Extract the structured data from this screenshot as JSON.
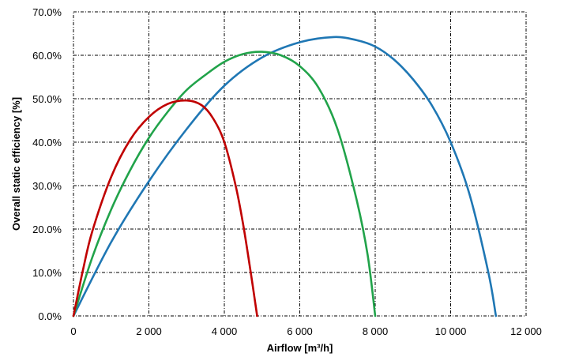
{
  "chart_data": {
    "type": "line",
    "title": "",
    "xlabel": "Airflow [m³/h]",
    "ylabel": "Overall static efficiency [%]",
    "xlim": [
      0,
      12000
    ],
    "ylim": [
      0,
      70
    ],
    "x_ticks": [
      0,
      2000,
      4000,
      6000,
      8000,
      10000,
      12000
    ],
    "x_tick_labels": [
      "0",
      "2 000",
      "4 000",
      "6 000",
      "8 000",
      "10 000",
      "12 000"
    ],
    "y_ticks": [
      0,
      10,
      20,
      30,
      40,
      50,
      60,
      70
    ],
    "y_tick_labels": [
      "0.0%",
      "10.0%",
      "20.0%",
      "30.0%",
      "40.0%",
      "50.0%",
      "60.0%",
      "70.0%"
    ],
    "grid": true,
    "legend": "none",
    "series": [
      {
        "color": "#1f77b4",
        "x": [
          0,
          1000,
          2000,
          3000,
          4000,
          5000,
          6000,
          6900,
          7500,
          8000,
          8500,
          9000,
          9500,
          10000,
          10500,
          11000,
          11200
        ],
        "y": [
          0,
          17,
          31,
          43,
          53,
          59.5,
          63,
          64.2,
          63.5,
          62,
          59,
          54.5,
          48.5,
          40,
          28,
          10,
          0
        ]
      },
      {
        "color": "#21a34a",
        "x": [
          0,
          500,
          1000,
          1500,
          2000,
          2500,
          3000,
          3500,
          4000,
          4500,
          5000,
          5500,
          6000,
          6500,
          7000,
          7500,
          7800,
          8000
        ],
        "y": [
          0,
          13.5,
          24.5,
          33.5,
          41,
          47,
          52,
          55.5,
          58.5,
          60.3,
          60.8,
          60,
          57.5,
          52.5,
          43,
          27,
          14,
          0
        ]
      },
      {
        "color": "#c00000",
        "x": [
          0,
          250,
          500,
          1000,
          1500,
          2000,
          2500,
          3000,
          3400,
          3700,
          4000,
          4300,
          4500,
          4700,
          4870
        ],
        "y": [
          0,
          10.5,
          19.5,
          32,
          40.5,
          45.8,
          48.8,
          49.6,
          48.5,
          45.5,
          40,
          30,
          21,
          10,
          0
        ]
      }
    ]
  }
}
